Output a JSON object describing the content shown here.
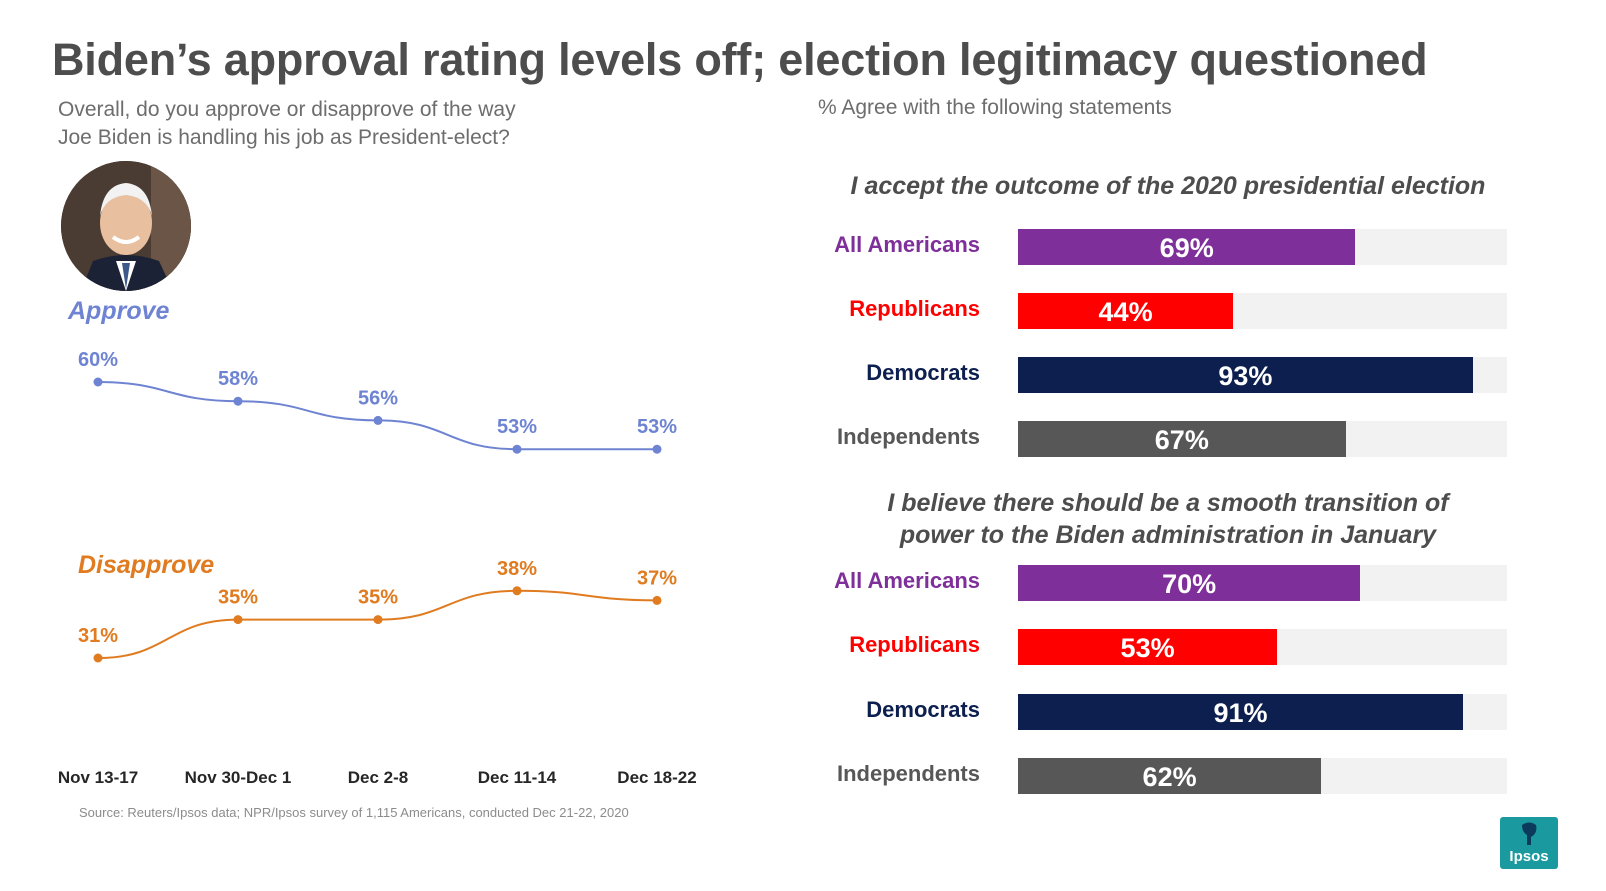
{
  "title": "Biden’s approval rating levels off; election legitimacy questioned",
  "left_question": [
    "Overall, do you approve or disapprove of the way",
    "Joe Biden is handling his job as President-elect?"
  ],
  "right_subtitle": "% Agree with the following statements",
  "avatar_icon": "portrait-photo-icon",
  "source": "Source: Reuters/Ipsos data; NPR/Ipsos survey of 1,115 Americans, conducted Dec 21-22, 2020",
  "logo_text": "Ipsos",
  "colors": {
    "approve": "#6e84d2",
    "disapprove": "#e07b20",
    "all_americans": "#7f2f99",
    "republicans": "#ff0000",
    "democrats": "#0c1f4f",
    "independents": "#575757",
    "track": "#f2f2f2"
  },
  "chart_data": [
    {
      "type": "line",
      "categories": [
        "Nov 13-17",
        "Nov 30-Dec 1",
        "Dec 2-8",
        "Dec 11-14",
        "Dec 18-22"
      ],
      "series": [
        {
          "name": "Approve",
          "values": [
            60,
            58,
            56,
            53,
            53
          ],
          "labels": [
            "60%",
            "58%",
            "56%",
            "53%",
            "53%"
          ]
        },
        {
          "name": "Disapprove",
          "values": [
            31,
            35,
            35,
            38,
            37
          ],
          "labels": [
            "31%",
            "35%",
            "35%",
            "38%",
            "37%"
          ]
        }
      ],
      "ylabel": "",
      "xlabel": ""
    },
    {
      "type": "bar",
      "title": "I accept the outcome of the 2020 presidential election",
      "categories": [
        "All Americans",
        "Republicans",
        "Democrats",
        "Independents"
      ],
      "values": [
        69,
        44,
        93,
        67
      ],
      "labels": [
        "69%",
        "44%",
        "93%",
        "67%"
      ],
      "xlim": [
        0,
        100
      ]
    },
    {
      "type": "bar",
      "title": "I believe there should be a smooth transition of power to the Biden administration in January",
      "title_lines": [
        "I believe there should be a smooth transition of",
        "power to the Biden administration in January"
      ],
      "categories": [
        "All Americans",
        "Republicans",
        "Democrats",
        "Independents"
      ],
      "values": [
        70,
        53,
        91,
        62
      ],
      "labels": [
        "70%",
        "53%",
        "91%",
        "62%"
      ],
      "xlim": [
        0,
        100
      ]
    }
  ]
}
